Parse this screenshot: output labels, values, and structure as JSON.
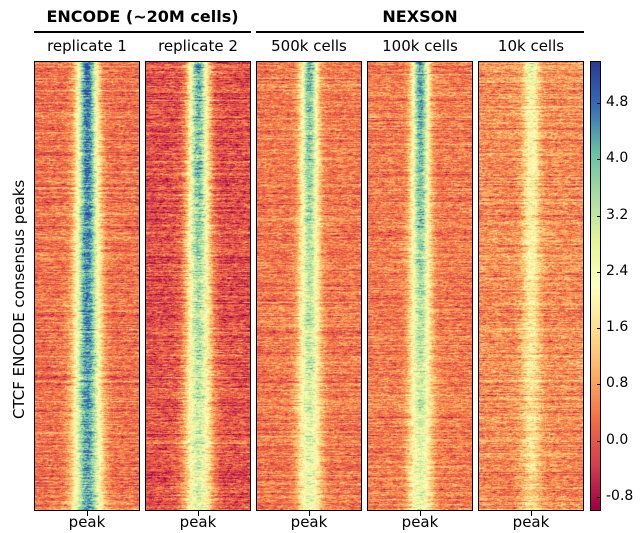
{
  "chart_data": {
    "type": "heatmap",
    "ylabel": "CTCF ENCODE consensus peaks",
    "groups": [
      {
        "title": "ENCODE (~20M cells)",
        "panels": [
          0,
          1
        ]
      },
      {
        "title": "NEXSON",
        "panels": [
          2,
          3,
          4
        ]
      }
    ],
    "panels": [
      {
        "title": "replicate 1",
        "xlabel": "peak",
        "peak_signal_top": 5.2,
        "peak_signal_bottom": 4.6,
        "background": 0.3,
        "noise": 0.55,
        "peak_width_rel": 0.12
      },
      {
        "title": "replicate 2",
        "xlabel": "peak",
        "peak_signal_top": 4.6,
        "peak_signal_bottom": 3.0,
        "background": -0.1,
        "noise": 0.6,
        "peak_width_rel": 0.12
      },
      {
        "title": "500k cells",
        "xlabel": "peak",
        "peak_signal_top": 4.4,
        "peak_signal_bottom": 2.8,
        "background": 0.4,
        "noise": 0.55,
        "peak_width_rel": 0.1
      },
      {
        "title": "100k cells",
        "xlabel": "peak",
        "peak_signal_top": 4.8,
        "peak_signal_bottom": 2.8,
        "background": 0.4,
        "noise": 0.55,
        "peak_width_rel": 0.1
      },
      {
        "title": "10k cells",
        "xlabel": "peak",
        "peak_signal_top": 2.6,
        "peak_signal_bottom": 1.6,
        "background": 0.6,
        "noise": 0.6,
        "peak_width_rel": 0.09
      }
    ],
    "colorbar": {
      "colormap": "Spectral",
      "range": [
        -1.0,
        5.4
      ],
      "ticks": [
        "-0.8",
        "0.0",
        "0.8",
        "1.6",
        "2.4",
        "3.2",
        "4.0",
        "4.8"
      ]
    }
  }
}
